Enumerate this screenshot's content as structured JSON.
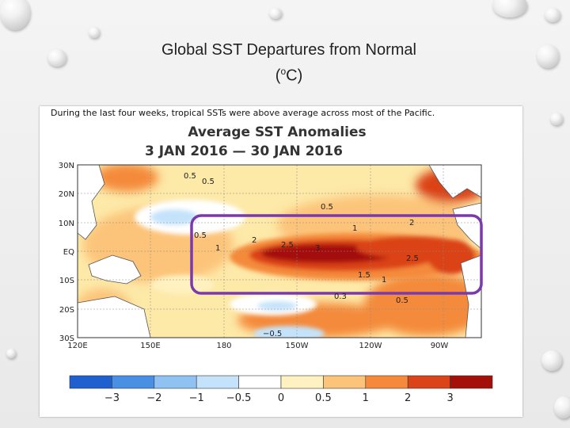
{
  "slide": {
    "title_line1": "Global SST Departures from Normal",
    "title_line2_pre": "(",
    "title_line2_sup": "o",
    "title_line2_post": "C)",
    "subtitle": "During the last four weeks, tropical SSTs were above average across most of the Pacific."
  },
  "chart_data": {
    "type": "heatmap",
    "title": "Average SST Anomalies",
    "subtitle": "3 JAN 2016 — 30 JAN 2016",
    "x_ticks": [
      "120E",
      "150E",
      "180",
      "150W",
      "120W",
      "90W"
    ],
    "y_ticks": [
      "30N",
      "20N",
      "10N",
      "EQ",
      "10S",
      "20S",
      "30S"
    ],
    "xlim": [
      120,
      285
    ],
    "ylim": [
      -30,
      30
    ],
    "colorbar": {
      "ticks": [
        "−3",
        "−2",
        "−1",
        "−0.5",
        "0",
        "0.5",
        "1",
        "2",
        "3"
      ],
      "colors": [
        "#1f5fd0",
        "#4a8fe6",
        "#8fc2f3",
        "#c4e3fb",
        "#ffffff",
        "#fff1c0",
        "#fcc47a",
        "#f48a3a",
        "#db4318",
        "#a40f0a"
      ]
    },
    "contour_labels": [
      "0.5",
      "0.5",
      "0.5",
      "0.5",
      "1",
      "1",
      "2",
      "2.5",
      "3",
      "2.5",
      "2",
      "1.5",
      "1",
      "0.5",
      "0.3",
      "−0.5"
    ],
    "highlight": {
      "region": "Equatorial Pacific",
      "color": "#7a3aa8"
    }
  }
}
